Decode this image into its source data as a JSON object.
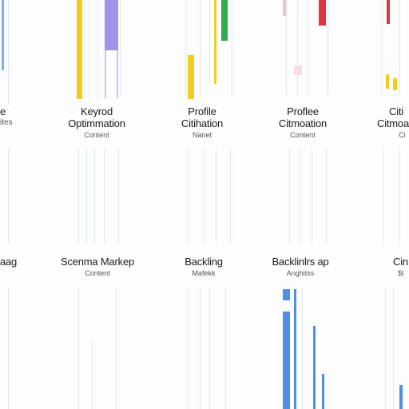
{
  "row1": [
    {
      "title_lines": [
        "Keyrod",
        "Optimmation"
      ],
      "subtitle": "Content"
    },
    {
      "title_lines": [
        "Profile",
        "Citihation"
      ],
      "subtitle": "Nanet"
    },
    {
      "title_lines": [
        "Proflee",
        "Citmoation"
      ],
      "subtitle": "Content"
    }
  ],
  "row1_edges": {
    "left_title": "e",
    "left_line2": "ites",
    "right_title": "Citi",
    "right_line2": "Citmoa",
    "right_sub": "Ci"
  },
  "row2": [
    {
      "title": "Scenma Markep",
      "subtitle": "Content"
    },
    {
      "title": "Backling",
      "subtitle": "Mafekk"
    },
    {
      "title": "Backlinlrs ap",
      "subtitle": "Anghitss"
    }
  ],
  "row2_edges": {
    "left_title": "aag",
    "right_title": "Cin",
    "right_sub": "$t"
  },
  "colors": {
    "blue": "#4f8fe6",
    "purple": "#9b8fe8",
    "yellow": "#f2cd1f",
    "green": "#2fae4e",
    "red": "#e0343f",
    "pink": "#f3c5c9",
    "gridline": "#dde6ef"
  }
}
